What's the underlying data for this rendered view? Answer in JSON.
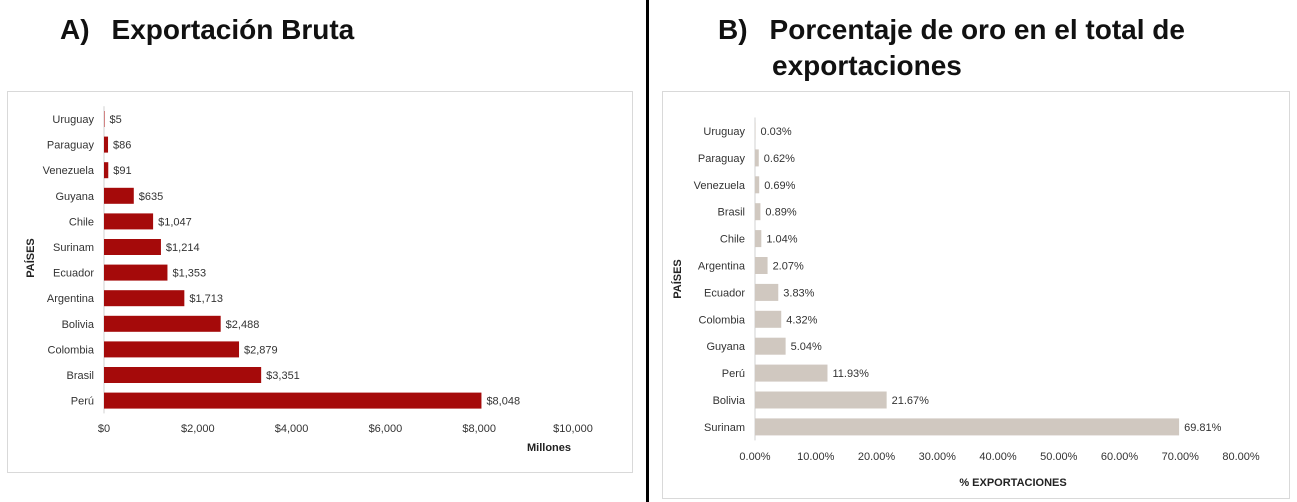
{
  "panels": {
    "a": {
      "label": "A)",
      "title": "Exportación Bruta"
    },
    "b": {
      "label": "B)",
      "title_line1": "Porcentaje de oro en el total de",
      "title_line2": "exportaciones"
    }
  },
  "chart_data": [
    {
      "type": "bar",
      "orientation": "horizontal",
      "color": "#a50a0a",
      "categories": [
        "Uruguay",
        "Paraguay",
        "Venezuela",
        "Guyana",
        "Chile",
        "Surinam",
        "Ecuador",
        "Argentina",
        "Bolivia",
        "Colombia",
        "Brasil",
        "Perú"
      ],
      "values": [
        5,
        86,
        91,
        635,
        1047,
        1214,
        1353,
        1713,
        2488,
        2879,
        3351,
        8048
      ],
      "data_labels": [
        "$5",
        "$86",
        "$91",
        "$635",
        "$1,047",
        "$1,214",
        "$1,353",
        "$1,713",
        "$2,488",
        "$2,879",
        "$3,351",
        "$8,048"
      ],
      "xlim": [
        0,
        10000
      ],
      "xticks": [
        0,
        2000,
        4000,
        6000,
        8000,
        10000
      ],
      "xtick_labels": [
        "$0",
        "$2,000",
        "$4,000",
        "$6,000",
        "$8,000",
        "$10,000"
      ],
      "xlabel": "Millones",
      "ylabel": "PAÍSES",
      "grid": false
    },
    {
      "type": "bar",
      "orientation": "horizontal",
      "color": "#d0c8c0",
      "categories": [
        "Uruguay",
        "Paraguay",
        "Venezuela",
        "Brasil",
        "Chile",
        "Argentina",
        "Ecuador",
        "Colombia",
        "Guyana",
        "Perú",
        "Bolivia",
        "Surinam"
      ],
      "values": [
        0.03,
        0.62,
        0.69,
        0.89,
        1.04,
        2.07,
        3.83,
        4.32,
        5.04,
        11.93,
        21.67,
        69.81
      ],
      "data_labels": [
        "0.03%",
        "0.62%",
        "0.69%",
        "0.89%",
        "1.04%",
        "2.07%",
        "3.83%",
        "4.32%",
        "5.04%",
        "11.93%",
        "21.67%",
        "69.81%"
      ],
      "xlim": [
        0,
        80
      ],
      "xticks": [
        0,
        10,
        20,
        30,
        40,
        50,
        60,
        70,
        80
      ],
      "xtick_labels": [
        "0.00%",
        "10.00%",
        "20.00%",
        "30.00%",
        "40.00%",
        "50.00%",
        "60.00%",
        "70.00%",
        "80.00%"
      ],
      "xlabel": "% EXPORTACIONES",
      "ylabel": "PAÍSES",
      "grid": false
    }
  ]
}
